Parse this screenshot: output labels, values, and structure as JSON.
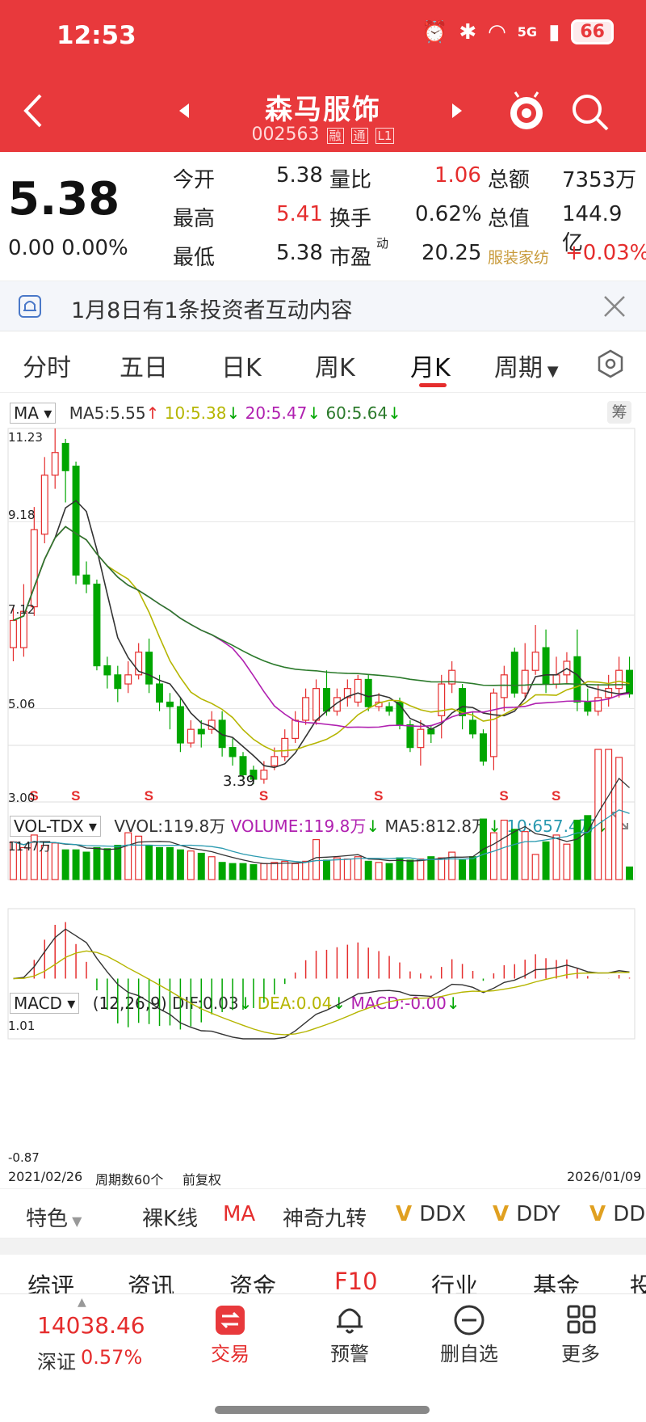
{
  "status_bar": {
    "time": "12:53",
    "signal_label": "5G",
    "battery": "66"
  },
  "header": {
    "title": "森马服饰",
    "code": "002563",
    "tags": [
      "融",
      "通",
      "L1"
    ]
  },
  "quote": {
    "price": "5.38",
    "change": "0.00 0.00%",
    "rows": [
      [
        {
          "label": "今开",
          "value": "5.38"
        },
        {
          "label": "量比",
          "value": "1.06"
        },
        {
          "label": "总额",
          "value": "7353万"
        }
      ],
      [
        {
          "label": "最高",
          "value": "5.41"
        },
        {
          "label": "换手",
          "value": "0.62%"
        },
        {
          "label": "总值",
          "value": "144.9亿"
        }
      ],
      [
        {
          "label": "最低",
          "value": "5.38"
        },
        {
          "label": "市盈",
          "sup": "动",
          "value": "20.25"
        },
        {
          "label": "服装家纺",
          "value": "+0.03%"
        }
      ]
    ]
  },
  "notice": {
    "text": "1月8日有1条投资者互动内容"
  },
  "tabs": [
    "分时",
    "五日",
    "日K",
    "周K",
    "月K",
    "周期"
  ],
  "active_tab": "月K",
  "ma_legend": {
    "label": "MA",
    "ma5": "MA5:5.55",
    "ma10": "10:5.38",
    "ma20": "20:5.47",
    "ma60": "60:5.64",
    "chip": "筹"
  },
  "price_axis": [
    "11.23",
    "9.18",
    "7.12",
    "5.06",
    "3.00"
  ],
  "low_label": "3.39",
  "signal_marker": "S",
  "vol_legend": {
    "label": "VOL-TDX",
    "vvol": "VVOL:119.8万",
    "volume": "VOLUME:119.8万",
    "ma5": "MA5:812.8万",
    "ma10": "10:657.4万"
  },
  "vol_axis_top": "1147万",
  "macd_legend": {
    "label": "MACD",
    "params": "(12,26,9)",
    "dif": "DIF:0.03",
    "dea": "DEA:0.04",
    "macd": "MACD:-0.00"
  },
  "macd_axis": {
    "top": "1.01",
    "bottom": "-0.87"
  },
  "chart_footer": {
    "start": "2021/02/26",
    "periods": "周期数60个",
    "adjust": "前复权",
    "end": "2026/01/09"
  },
  "indicator_bar": [
    "特色",
    "裸K线",
    "MA",
    "神奇九转",
    "DDX",
    "DDY",
    "DDZ"
  ],
  "f10_tabs": [
    "综评",
    "资讯",
    "资金",
    "F10",
    "行业",
    "基金",
    "投"
  ],
  "bottom_nav": {
    "index_value": "14038.46",
    "index_name": "深证",
    "index_change": "0.57%",
    "items": [
      "交易",
      "预警",
      "删自选",
      "更多"
    ]
  },
  "colors": {
    "header": "#e8393c",
    "up": "#e52d2d",
    "down": "#00a600",
    "ma5": "#333333",
    "ma10": "#b5b500",
    "ma20": "#b020b0",
    "ma60": "#2b7a2b"
  },
  "chart_data": {
    "type": "candlestick",
    "period": "monthly",
    "x_range": [
      "2021/02/26",
      "2026/01/09"
    ],
    "y_range": [
      3.0,
      11.23
    ],
    "candles": [
      {
        "o": 6.4,
        "c": 7.0,
        "h": 7.3,
        "l": 6.1
      },
      {
        "o": 6.4,
        "c": 7.2,
        "h": 7.8,
        "l": 6.2
      },
      {
        "o": 7.3,
        "c": 9.0,
        "h": 9.5,
        "l": 7.1
      },
      {
        "o": 8.9,
        "c": 10.2,
        "h": 10.6,
        "l": 8.7
      },
      {
        "o": 10.2,
        "c": 10.7,
        "h": 11.23,
        "l": 9.9
      },
      {
        "o": 10.9,
        "c": 10.3,
        "h": 11.0,
        "l": 9.6
      },
      {
        "o": 10.4,
        "c": 8.0,
        "h": 10.5,
        "l": 7.8
      },
      {
        "o": 8.0,
        "c": 7.8,
        "h": 8.3,
        "l": 7.6
      },
      {
        "o": 7.8,
        "c": 6.0,
        "h": 7.9,
        "l": 5.9
      },
      {
        "o": 6.0,
        "c": 5.8,
        "h": 6.2,
        "l": 5.5
      },
      {
        "o": 5.8,
        "c": 5.5,
        "h": 6.0,
        "l": 5.2
      },
      {
        "o": 5.6,
        "c": 5.8,
        "h": 6.1,
        "l": 5.4
      },
      {
        "o": 5.8,
        "c": 6.3,
        "h": 6.5,
        "l": 5.7
      },
      {
        "o": 6.3,
        "c": 5.6,
        "h": 6.6,
        "l": 5.4
      },
      {
        "o": 5.6,
        "c": 5.2,
        "h": 5.8,
        "l": 5.0
      },
      {
        "o": 5.2,
        "c": 5.1,
        "h": 5.4,
        "l": 4.6
      },
      {
        "o": 5.1,
        "c": 4.3,
        "h": 5.3,
        "l": 4.1
      },
      {
        "o": 4.3,
        "c": 4.6,
        "h": 4.8,
        "l": 4.2
      },
      {
        "o": 4.6,
        "c": 4.5,
        "h": 4.8,
        "l": 4.2
      },
      {
        "o": 4.6,
        "c": 4.8,
        "h": 5.0,
        "l": 4.5
      },
      {
        "o": 4.8,
        "c": 4.2,
        "h": 5.0,
        "l": 4.0
      },
      {
        "o": 4.2,
        "c": 4.0,
        "h": 4.4,
        "l": 3.8
      },
      {
        "o": 4.0,
        "c": 3.6,
        "h": 4.1,
        "l": 3.5
      },
      {
        "o": 3.7,
        "c": 3.5,
        "h": 3.8,
        "l": 3.39
      },
      {
        "o": 3.5,
        "c": 3.7,
        "h": 3.9,
        "l": 3.4
      },
      {
        "o": 3.8,
        "c": 4.0,
        "h": 4.2,
        "l": 3.7
      },
      {
        "o": 4.0,
        "c": 4.4,
        "h": 4.6,
        "l": 3.9
      },
      {
        "o": 4.4,
        "c": 4.8,
        "h": 5.0,
        "l": 4.3
      },
      {
        "o": 4.8,
        "c": 5.3,
        "h": 5.5,
        "l": 4.7
      },
      {
        "o": 4.8,
        "c": 5.5,
        "h": 5.7,
        "l": 4.7
      },
      {
        "o": 5.5,
        "c": 5.0,
        "h": 5.9,
        "l": 4.9
      },
      {
        "o": 5.0,
        "c": 5.3,
        "h": 5.5,
        "l": 4.9
      },
      {
        "o": 5.3,
        "c": 5.5,
        "h": 5.7,
        "l": 5.1
      },
      {
        "o": 5.2,
        "c": 5.7,
        "h": 5.8,
        "l": 5.1
      },
      {
        "o": 5.7,
        "c": 5.1,
        "h": 5.8,
        "l": 5.0
      },
      {
        "o": 5.1,
        "c": 5.2,
        "h": 5.4,
        "l": 5.0
      },
      {
        "o": 5.1,
        "c": 5.0,
        "h": 5.2,
        "l": 4.9
      },
      {
        "o": 5.2,
        "c": 4.7,
        "h": 5.3,
        "l": 4.6
      },
      {
        "o": 4.7,
        "c": 4.2,
        "h": 4.8,
        "l": 4.1
      },
      {
        "o": 4.2,
        "c": 4.6,
        "h": 4.8,
        "l": 3.8
      },
      {
        "o": 4.6,
        "c": 4.5,
        "h": 4.7,
        "l": 4.3
      },
      {
        "o": 4.9,
        "c": 5.6,
        "h": 5.8,
        "l": 4.4
      },
      {
        "o": 5.6,
        "c": 5.9,
        "h": 6.1,
        "l": 5.4
      },
      {
        "o": 5.5,
        "c": 4.9,
        "h": 5.6,
        "l": 4.6
      },
      {
        "o": 4.8,
        "c": 4.5,
        "h": 5.0,
        "l": 4.4
      },
      {
        "o": 4.5,
        "c": 3.9,
        "h": 4.6,
        "l": 3.8
      },
      {
        "o": 4.0,
        "c": 5.4,
        "h": 5.5,
        "l": 3.7
      },
      {
        "o": 5.3,
        "c": 5.8,
        "h": 6.0,
        "l": 5.0
      },
      {
        "o": 6.3,
        "c": 5.4,
        "h": 6.4,
        "l": 5.3
      },
      {
        "o": 5.4,
        "c": 5.9,
        "h": 6.5,
        "l": 5.3
      },
      {
        "o": 5.9,
        "c": 6.3,
        "h": 6.9,
        "l": 5.8
      },
      {
        "o": 6.4,
        "c": 5.6,
        "h": 6.8,
        "l": 5.4
      },
      {
        "o": 5.6,
        "c": 5.8,
        "h": 6.2,
        "l": 5.5
      },
      {
        "o": 5.8,
        "c": 6.1,
        "h": 6.3,
        "l": 5.6
      },
      {
        "o": 6.2,
        "c": 5.2,
        "h": 6.8,
        "l": 5.0
      },
      {
        "o": 5.2,
        "c": 5.0,
        "h": 5.5,
        "l": 4.9
      },
      {
        "o": 5.0,
        "c": 5.3,
        "h": 5.6,
        "l": 4.9
      },
      {
        "o": 5.3,
        "c": 5.5,
        "h": 5.8,
        "l": 5.1
      },
      {
        "o": 5.5,
        "c": 5.9,
        "h": 6.2,
        "l": 5.3
      },
      {
        "o": 5.9,
        "c": 5.38,
        "h": 6.2,
        "l": 5.3
      }
    ],
    "volume_range": [
      0,
      1147
    ],
    "volume_unit": "万",
    "volumes": [
      330,
      280,
      390,
      300,
      320,
      260,
      260,
      240,
      280,
      270,
      300,
      410,
      380,
      300,
      280,
      280,
      260,
      250,
      230,
      200,
      150,
      140,
      140,
      130,
      140,
      150,
      160,
      140,
      160,
      350,
      170,
      190,
      180,
      200,
      160,
      150,
      140,
      190,
      170,
      180,
      200,
      190,
      240,
      170,
      200,
      530,
      410,
      520,
      440,
      420,
      220,
      330,
      390,
      310,
      520,
      560,
      1140,
      1140,
      1070,
      110
    ],
    "macd_range": [
      -0.87,
      1.01
    ]
  }
}
